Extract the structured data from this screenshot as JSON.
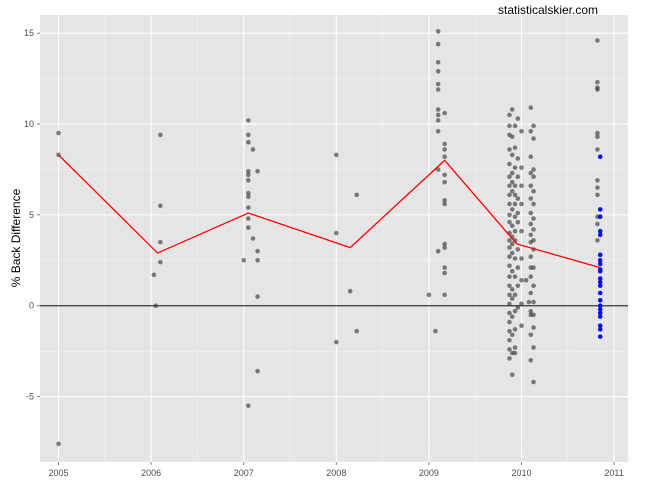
{
  "watermark": "statisticalskier.com",
  "chart_data": {
    "type": "scatter",
    "title": "",
    "xlabel": "",
    "ylabel": "% Back Difference",
    "xlim": [
      2004.8,
      2011.15
    ],
    "ylim": [
      -8.6,
      16.0
    ],
    "x_ticks": [
      "2005",
      "2006",
      "2007",
      "2008",
      "2009",
      "2010",
      "2011"
    ],
    "y_ticks": [
      "-5",
      "0",
      "5",
      "10",
      "15"
    ],
    "grid": true,
    "background": "#e5e5e5",
    "reference_line_y": 0,
    "colors": {
      "points": "#333333",
      "highlight": "#0000ff",
      "trend": "#ff0000"
    },
    "trend": {
      "x": [
        2005.0,
        2006.07,
        2007.05,
        2008.15,
        2009.17,
        2009.95,
        2010.85
      ],
      "y": [
        8.3,
        2.9,
        5.1,
        3.2,
        8.0,
        3.4,
        2.1
      ]
    },
    "series": [
      {
        "points": [
          [
            2005.0,
            9.5
          ],
          [
            2005.0,
            8.3
          ],
          [
            2005.0,
            -7.6
          ],
          [
            2006.03,
            1.7
          ],
          [
            2006.05,
            0.0
          ],
          [
            2006.1,
            9.4
          ],
          [
            2006.1,
            5.5
          ],
          [
            2006.1,
            3.5
          ],
          [
            2006.1,
            2.4
          ],
          [
            2007.0,
            2.5
          ],
          [
            2007.05,
            10.2
          ],
          [
            2007.05,
            9.4
          ],
          [
            2007.05,
            9.0
          ],
          [
            2007.05,
            7.4
          ],
          [
            2007.05,
            7.2
          ],
          [
            2007.05,
            6.9
          ],
          [
            2007.05,
            6.2
          ],
          [
            2007.05,
            6.0
          ],
          [
            2007.05,
            5.4
          ],
          [
            2007.05,
            4.8
          ],
          [
            2007.05,
            4.3
          ],
          [
            2007.05,
            -5.5
          ],
          [
            2007.1,
            8.6
          ],
          [
            2007.1,
            3.7
          ],
          [
            2007.15,
            7.4
          ],
          [
            2007.15,
            3.0
          ],
          [
            2007.15,
            2.5
          ],
          [
            2007.15,
            0.5
          ],
          [
            2007.15,
            -3.6
          ],
          [
            2008.0,
            8.3
          ],
          [
            2008.0,
            4.0
          ],
          [
            2008.0,
            -2.0
          ],
          [
            2008.15,
            0.8
          ],
          [
            2008.22,
            6.1
          ],
          [
            2008.22,
            -1.4
          ],
          [
            2009.0,
            0.6
          ],
          [
            2009.07,
            -1.4
          ],
          [
            2009.1,
            15.1
          ],
          [
            2009.1,
            14.4
          ],
          [
            2009.1,
            13.4
          ],
          [
            2009.1,
            12.9
          ],
          [
            2009.1,
            12.2
          ],
          [
            2009.1,
            11.9
          ],
          [
            2009.1,
            10.8
          ],
          [
            2009.1,
            10.5
          ],
          [
            2009.1,
            10.2
          ],
          [
            2009.1,
            9.6
          ],
          [
            2009.1,
            7.5
          ],
          [
            2009.1,
            3.0
          ],
          [
            2009.17,
            10.6
          ],
          [
            2009.17,
            8.9
          ],
          [
            2009.17,
            8.6
          ],
          [
            2009.17,
            8.2
          ],
          [
            2009.17,
            7.2
          ],
          [
            2009.17,
            6.8
          ],
          [
            2009.17,
            5.8
          ],
          [
            2009.17,
            5.6
          ],
          [
            2009.17,
            3.4
          ],
          [
            2009.17,
            3.2
          ],
          [
            2009.17,
            2.1
          ],
          [
            2009.17,
            1.8
          ],
          [
            2009.17,
            0.6
          ],
          [
            2009.87,
            10.5
          ],
          [
            2009.87,
            9.9
          ],
          [
            2009.87,
            9.4
          ],
          [
            2009.87,
            8.6
          ],
          [
            2009.87,
            7.8
          ],
          [
            2009.87,
            7.1
          ],
          [
            2009.87,
            6.6
          ],
          [
            2009.87,
            6.1
          ],
          [
            2009.87,
            5.6
          ],
          [
            2009.87,
            5.0
          ],
          [
            2009.87,
            4.6
          ],
          [
            2009.87,
            4.0
          ],
          [
            2009.87,
            3.6
          ],
          [
            2009.87,
            3.2
          ],
          [
            2009.87,
            2.7
          ],
          [
            2009.87,
            2.2
          ],
          [
            2009.87,
            1.6
          ],
          [
            2009.87,
            1.1
          ],
          [
            2009.87,
            0.6
          ],
          [
            2009.87,
            0.1
          ],
          [
            2009.87,
            -0.4
          ],
          [
            2009.87,
            -0.9
          ],
          [
            2009.87,
            -1.4
          ],
          [
            2009.87,
            -1.9
          ],
          [
            2009.87,
            -2.4
          ],
          [
            2009.87,
            -2.9
          ],
          [
            2009.9,
            10.8
          ],
          [
            2009.9,
            9.3
          ],
          [
            2009.9,
            8.3
          ],
          [
            2009.9,
            7.3
          ],
          [
            2009.9,
            6.8
          ],
          [
            2009.9,
            6.3
          ],
          [
            2009.9,
            5.3
          ],
          [
            2009.9,
            4.4
          ],
          [
            2009.9,
            3.8
          ],
          [
            2009.9,
            3.4
          ],
          [
            2009.9,
            2.9
          ],
          [
            2009.9,
            1.9
          ],
          [
            2009.9,
            0.9
          ],
          [
            2009.9,
            0.4
          ],
          [
            2009.9,
            -0.6
          ],
          [
            2009.9,
            -1.6
          ],
          [
            2009.9,
            -2.6
          ],
          [
            2009.9,
            -3.8
          ],
          [
            2009.93,
            9.9
          ],
          [
            2009.93,
            8.7
          ],
          [
            2009.93,
            7.6
          ],
          [
            2009.93,
            6.6
          ],
          [
            2009.93,
            6.1
          ],
          [
            2009.93,
            5.6
          ],
          [
            2009.93,
            4.9
          ],
          [
            2009.93,
            4.1
          ],
          [
            2009.93,
            3.6
          ],
          [
            2009.93,
            2.6
          ],
          [
            2009.93,
            1.6
          ],
          [
            2009.93,
            0.6
          ],
          [
            2009.93,
            -0.3
          ],
          [
            2009.93,
            -1.3
          ],
          [
            2009.93,
            -2.3
          ],
          [
            2009.93,
            -2.6
          ],
          [
            2009.96,
            10.3
          ],
          [
            2009.96,
            8.1
          ],
          [
            2009.96,
            7.1
          ],
          [
            2009.96,
            5.9
          ],
          [
            2009.96,
            5.1
          ],
          [
            2009.96,
            4.6
          ],
          [
            2009.96,
            3.1
          ],
          [
            2009.96,
            2.1
          ],
          [
            2009.96,
            1.1
          ],
          [
            2009.96,
            -0.1
          ],
          [
            2010.0,
            9.6
          ],
          [
            2010.0,
            7.6
          ],
          [
            2010.0,
            6.6
          ],
          [
            2010.0,
            5.6
          ],
          [
            2010.0,
            4.1
          ],
          [
            2010.0,
            2.6
          ],
          [
            2010.0,
            1.4
          ],
          [
            2010.0,
            0.1
          ],
          [
            2010.0,
            -1.1
          ],
          [
            2010.05,
            1.4
          ],
          [
            2010.08,
            0.2
          ],
          [
            2010.1,
            10.9
          ],
          [
            2010.1,
            9.6
          ],
          [
            2010.1,
            8.2
          ],
          [
            2010.1,
            7.3
          ],
          [
            2010.1,
            6.6
          ],
          [
            2010.1,
            5.9
          ],
          [
            2010.1,
            5.1
          ],
          [
            2010.1,
            4.5
          ],
          [
            2010.1,
            3.9
          ],
          [
            2010.1,
            3.5
          ],
          [
            2010.1,
            2.7
          ],
          [
            2010.1,
            2.1
          ],
          [
            2010.1,
            1.6
          ],
          [
            2010.1,
            0.7
          ],
          [
            2010.1,
            -0.3
          ],
          [
            2010.1,
            -0.5
          ],
          [
            2010.1,
            -1.6
          ],
          [
            2010.1,
            -3.0
          ],
          [
            2010.13,
            9.9
          ],
          [
            2010.13,
            9.2
          ],
          [
            2010.13,
            7.5
          ],
          [
            2010.13,
            7.1
          ],
          [
            2010.13,
            6.3
          ],
          [
            2010.13,
            5.6
          ],
          [
            2010.13,
            4.8
          ],
          [
            2010.13,
            4.2
          ],
          [
            2010.13,
            3.6
          ],
          [
            2010.13,
            3.1
          ],
          [
            2010.13,
            2.1
          ],
          [
            2010.13,
            1.1
          ],
          [
            2010.13,
            0.2
          ],
          [
            2010.13,
            -0.5
          ],
          [
            2010.13,
            -1.2
          ],
          [
            2010.13,
            -2.3
          ],
          [
            2010.13,
            -4.2
          ],
          [
            2010.82,
            14.6
          ],
          [
            2010.82,
            12.3
          ],
          [
            2010.82,
            12.0
          ],
          [
            2010.82,
            11.9
          ],
          [
            2010.82,
            9.5
          ],
          [
            2010.82,
            9.3
          ],
          [
            2010.82,
            8.6
          ],
          [
            2010.82,
            6.9
          ],
          [
            2010.82,
            6.5
          ],
          [
            2010.82,
            6.1
          ],
          [
            2010.82,
            4.9
          ],
          [
            2010.82,
            4.5
          ],
          [
            2010.82,
            3.6
          ]
        ]
      },
      {
        "points": [
          [
            2010.85,
            8.2
          ],
          [
            2010.85,
            5.3
          ],
          [
            2010.85,
            4.9
          ],
          [
            2010.85,
            4.1
          ],
          [
            2010.85,
            3.9
          ],
          [
            2010.85,
            2.8
          ],
          [
            2010.85,
            2.5
          ],
          [
            2010.85,
            2.3
          ],
          [
            2010.85,
            2.0
          ],
          [
            2010.85,
            1.9
          ],
          [
            2010.85,
            1.5
          ],
          [
            2010.85,
            1.3
          ],
          [
            2010.85,
            1.1
          ],
          [
            2010.85,
            0.7
          ],
          [
            2010.85,
            0.3
          ],
          [
            2010.85,
            0.0
          ],
          [
            2010.85,
            -0.2
          ],
          [
            2010.85,
            -0.4
          ],
          [
            2010.85,
            -0.6
          ],
          [
            2010.85,
            -1.1
          ],
          [
            2010.85,
            -1.3
          ],
          [
            2010.85,
            -1.7
          ]
        ]
      }
    ]
  }
}
